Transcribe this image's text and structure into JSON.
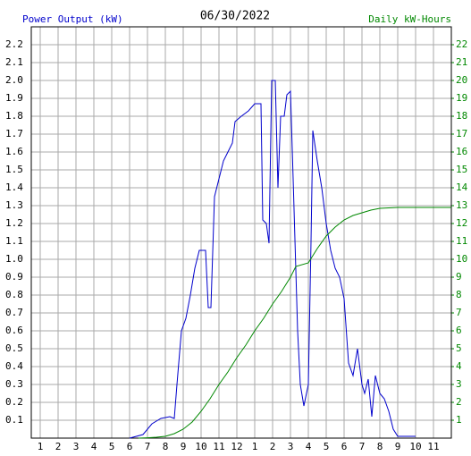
{
  "chart_data": {
    "type": "line",
    "title": "06/30/2022",
    "xlim": [
      0.5,
      24
    ],
    "xticks": [
      {
        "value": 1,
        "label": "1"
      },
      {
        "value": 2,
        "label": "2"
      },
      {
        "value": 3,
        "label": "3"
      },
      {
        "value": 4,
        "label": "4"
      },
      {
        "value": 5,
        "label": "5"
      },
      {
        "value": 6,
        "label": "6"
      },
      {
        "value": 7,
        "label": "7"
      },
      {
        "value": 8,
        "label": "8"
      },
      {
        "value": 9,
        "label": "9"
      },
      {
        "value": 10,
        "label": "10"
      },
      {
        "value": 11,
        "label": "11"
      },
      {
        "value": 12,
        "label": "12"
      },
      {
        "value": 13,
        "label": "1"
      },
      {
        "value": 14,
        "label": "2"
      },
      {
        "value": 15,
        "label": "3"
      },
      {
        "value": 16,
        "label": "4"
      },
      {
        "value": 17,
        "label": "5"
      },
      {
        "value": 18,
        "label": "6"
      },
      {
        "value": 19,
        "label": "7"
      },
      {
        "value": 20,
        "label": "8"
      },
      {
        "value": 21,
        "label": "9"
      },
      {
        "value": 22,
        "label": "10"
      },
      {
        "value": 23,
        "label": "11"
      }
    ],
    "ylim": [
      0,
      2.3
    ],
    "yticks": [
      0.1,
      0.2,
      0.3,
      0.4,
      0.5,
      0.6,
      0.7,
      0.8,
      0.9,
      {
        "value": 1,
        "label": "1.0"
      },
      1.1,
      1.2,
      1.3,
      1.4,
      1.5,
      1.6,
      1.7,
      1.8,
      1.9,
      {
        "value": 2,
        "label": "2.0"
      },
      2.1,
      2.2
    ],
    "y2lim": [
      0,
      23
    ],
    "y2ticks": [
      1,
      2,
      3,
      4,
      5,
      6,
      7,
      8,
      9,
      10,
      11,
      12,
      13,
      14,
      15,
      16,
      17,
      18,
      19,
      20,
      21,
      22
    ],
    "grid": true,
    "series": [
      {
        "name": "Power Output (kW)",
        "color": "#0000cc",
        "x": [
          6,
          6.75,
          7.25,
          7.75,
          8.25,
          8.5,
          8.65,
          8.9,
          9.15,
          9.4,
          9.65,
          9.9,
          10.25,
          10.4,
          10.55,
          10.75,
          11,
          11.25,
          11.5,
          11.75,
          11.9,
          12.25,
          12.65,
          13,
          13.35,
          13.45,
          13.65,
          13.8,
          13.95,
          14.15,
          14.3,
          14.45,
          14.65,
          14.8,
          15,
          15.15,
          15.4,
          15.55,
          15.75,
          16,
          16.15,
          16.25,
          16.5,
          16.75,
          17,
          17.25,
          17.5,
          17.75,
          18,
          18.25,
          18.5,
          18.75,
          19,
          19.15,
          19.35,
          19.55,
          19.75,
          20,
          20.25,
          20.5,
          20.75,
          21,
          22
        ],
        "values": [
          0,
          0.02,
          0.08,
          0.11,
          0.12,
          0.11,
          0.3,
          0.6,
          0.67,
          0.8,
          0.95,
          1.05,
          1.05,
          0.73,
          0.73,
          1.35,
          1.45,
          1.55,
          1.6,
          1.65,
          1.77,
          1.8,
          1.83,
          1.87,
          1.87,
          1.22,
          1.2,
          1.09,
          2.0,
          2.0,
          1.4,
          1.8,
          1.8,
          1.92,
          1.94,
          1.45,
          0.6,
          0.3,
          0.18,
          0.3,
          1.1,
          1.72,
          1.55,
          1.4,
          1.2,
          1.05,
          0.95,
          0.9,
          0.78,
          0.42,
          0.35,
          0.5,
          0.3,
          0.25,
          0.33,
          0.12,
          0.35,
          0.25,
          0.22,
          0.15,
          0.05,
          0.01,
          0.01
        ]
      },
      {
        "name": "Daily kW-Hours",
        "color": "#008800",
        "axis": "y2",
        "x": [
          6.5,
          7,
          7.5,
          8,
          8.5,
          9,
          9.5,
          10,
          10.5,
          11,
          11.5,
          12,
          12.5,
          13,
          13.5,
          14,
          14.5,
          15,
          15.3,
          16,
          16.5,
          17,
          17.5,
          18,
          18.5,
          19,
          19.5,
          20,
          21,
          24
        ],
        "values": [
          0,
          0.02,
          0.05,
          0.1,
          0.25,
          0.5,
          0.9,
          1.5,
          2.2,
          3,
          3.7,
          4.5,
          5.2,
          6,
          6.7,
          7.5,
          8.2,
          9,
          9.6,
          9.8,
          10.6,
          11.3,
          11.8,
          12.2,
          12.45,
          12.6,
          12.75,
          12.85,
          12.9,
          12.9
        ]
      }
    ]
  }
}
